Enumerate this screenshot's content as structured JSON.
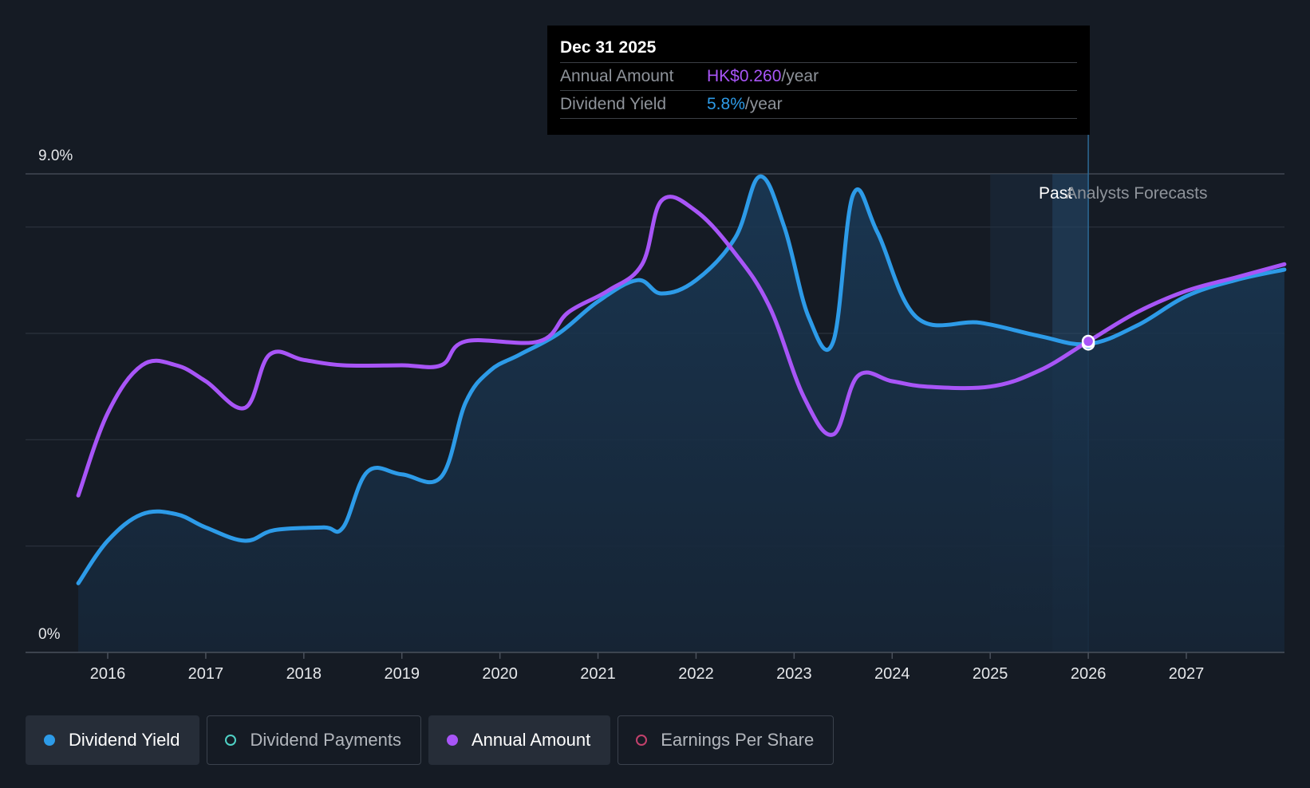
{
  "chart_data": {
    "type": "line",
    "y_axis": {
      "min_label": "0%",
      "max_label": "9.0%",
      "ylim": [
        0,
        9.0
      ],
      "unit": "%"
    },
    "x_ticks": [
      "2016",
      "2017",
      "2018",
      "2019",
      "2020",
      "2021",
      "2022",
      "2023",
      "2024",
      "2025",
      "2026",
      "2027"
    ],
    "xlim": [
      2015.7,
      2028.0
    ],
    "grid": true,
    "regions": {
      "past_label": "Past",
      "forecast_label": "Analysts Forecasts",
      "past_start": 2025.0,
      "split": 2026.0
    },
    "series": [
      {
        "name": "Dividend Yield",
        "color": "#2d9be8",
        "fill": true,
        "points": [
          [
            2015.7,
            1.3
          ],
          [
            2016.0,
            2.1
          ],
          [
            2016.35,
            2.6
          ],
          [
            2016.7,
            2.6
          ],
          [
            2017.0,
            2.35
          ],
          [
            2017.4,
            2.1
          ],
          [
            2017.7,
            2.3
          ],
          [
            2018.2,
            2.35
          ],
          [
            2018.4,
            2.35
          ],
          [
            2018.65,
            3.4
          ],
          [
            2019.0,
            3.35
          ],
          [
            2019.4,
            3.3
          ],
          [
            2019.65,
            4.7
          ],
          [
            2019.9,
            5.3
          ],
          [
            2020.2,
            5.6
          ],
          [
            2020.6,
            6.0
          ],
          [
            2021.0,
            6.6
          ],
          [
            2021.4,
            7.0
          ],
          [
            2021.65,
            6.75
          ],
          [
            2022.0,
            7.0
          ],
          [
            2022.4,
            7.8
          ],
          [
            2022.65,
            8.95
          ],
          [
            2022.9,
            8.0
          ],
          [
            2023.15,
            6.3
          ],
          [
            2023.4,
            5.85
          ],
          [
            2023.6,
            8.6
          ],
          [
            2023.85,
            7.9
          ],
          [
            2024.25,
            6.3
          ],
          [
            2024.9,
            6.2
          ],
          [
            2025.5,
            5.95
          ],
          [
            2026.0,
            5.8
          ],
          [
            2026.5,
            6.15
          ],
          [
            2027.0,
            6.7
          ],
          [
            2027.5,
            7.0
          ],
          [
            2028.0,
            7.2
          ]
        ]
      },
      {
        "name": "Annual Amount",
        "color": "#a855f7",
        "fill": false,
        "points": [
          [
            2015.7,
            2.95
          ],
          [
            2016.0,
            4.5
          ],
          [
            2016.35,
            5.4
          ],
          [
            2016.7,
            5.4
          ],
          [
            2017.0,
            5.1
          ],
          [
            2017.4,
            4.6
          ],
          [
            2017.65,
            5.6
          ],
          [
            2018.0,
            5.5
          ],
          [
            2018.4,
            5.4
          ],
          [
            2019.0,
            5.4
          ],
          [
            2019.4,
            5.4
          ],
          [
            2019.65,
            5.85
          ],
          [
            2020.4,
            5.85
          ],
          [
            2020.7,
            6.4
          ],
          [
            2021.1,
            6.8
          ],
          [
            2021.45,
            7.3
          ],
          [
            2021.65,
            8.5
          ],
          [
            2022.0,
            8.3
          ],
          [
            2022.4,
            7.5
          ],
          [
            2022.75,
            6.5
          ],
          [
            2023.1,
            4.8
          ],
          [
            2023.4,
            4.1
          ],
          [
            2023.65,
            5.2
          ],
          [
            2024.0,
            5.1
          ],
          [
            2024.35,
            5.0
          ],
          [
            2025.0,
            5.0
          ],
          [
            2025.5,
            5.3
          ],
          [
            2026.0,
            5.85
          ],
          [
            2026.5,
            6.4
          ],
          [
            2027.0,
            6.8
          ],
          [
            2027.5,
            7.05
          ],
          [
            2028.0,
            7.3
          ]
        ]
      }
    ],
    "highlight_x": 2026.0
  },
  "tooltip": {
    "date": "Dec 31 2025",
    "rows": [
      {
        "label": "Annual Amount",
        "value": "HK$0.260",
        "unit": "/year"
      },
      {
        "label": "Dividend Yield",
        "value": "5.8%",
        "unit": "/year"
      }
    ]
  },
  "legend": [
    {
      "label": "Dividend Yield",
      "color": "#2d9be8",
      "active": true,
      "filled": true
    },
    {
      "label": "Dividend Payments",
      "color": "#4fd1c5",
      "active": false,
      "filled": false
    },
    {
      "label": "Annual Amount",
      "color": "#a855f7",
      "active": true,
      "filled": true
    },
    {
      "label": "Earnings Per Share",
      "color": "#c2416c",
      "active": false,
      "filled": false
    }
  ]
}
